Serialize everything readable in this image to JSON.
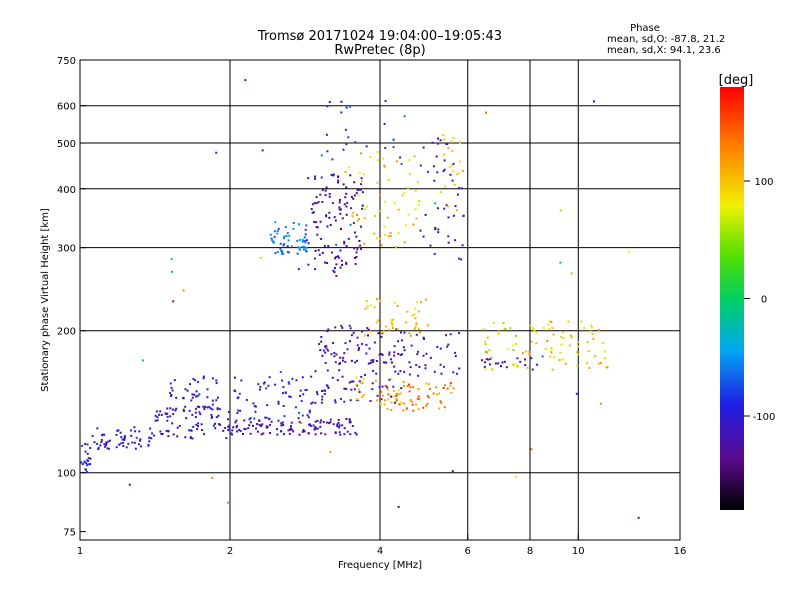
{
  "chart_data": {
    "type": "scatter",
    "title": "Tromsø 20171024  19:04:00–19:05:43",
    "subtitle": "RwPretec (8p)",
    "xlabel": "Frequency [MHz]",
    "ylabel": "Stationary phase Virtual Height [km]",
    "x_scale": "log",
    "y_scale": "log",
    "xlim": [
      1,
      16
    ],
    "ylim": [
      72,
      750
    ],
    "x_ticks": [
      1,
      2,
      4,
      6,
      8,
      10,
      16
    ],
    "x_tick_labels": [
      "1",
      "2",
      "4",
      "6",
      "8",
      "10",
      "16"
    ],
    "y_ticks": [
      75,
      100,
      200,
      300,
      400,
      500,
      600,
      750
    ],
    "y_tick_labels": [
      "75",
      "100",
      "200",
      "300",
      "400",
      "500",
      "600",
      "750"
    ],
    "grid_x": [
      2,
      4,
      6,
      8,
      10
    ],
    "grid_y": [
      100,
      200,
      300,
      400,
      500,
      600
    ],
    "grid": true,
    "phase_stats": {
      "heading": "Phase",
      "line_o": "mean, sd,O:  -87.8, 21.2",
      "line_x": "mean, sd,X:  94.1, 23.6"
    },
    "colorbar": {
      "unit": "[deg]",
      "range": [
        -180,
        180
      ],
      "tick_values": [
        100,
        0,
        -100
      ],
      "tick_labels": [
        "100",
        "0",
        "-100"
      ]
    },
    "clusters": [
      {
        "f": [
          1.0,
          1.05
        ],
        "h": [
          100,
          115
        ],
        "n": 25,
        "ph": [
          -125,
          -70
        ]
      },
      {
        "f": [
          1.05,
          1.4
        ],
        "h": [
          112,
          125
        ],
        "n": 60,
        "ph": [
          -125,
          -80
        ]
      },
      {
        "f": [
          1.4,
          2.0
        ],
        "h": [
          118,
          138
        ],
        "n": 80,
        "ph": [
          -130,
          -85
        ]
      },
      {
        "f": [
          1.5,
          1.9
        ],
        "h": [
          135,
          160
        ],
        "n": 45,
        "ph": [
          -125,
          -85
        ]
      },
      {
        "f": [
          2.0,
          3.6
        ],
        "h": [
          120,
          130
        ],
        "n": 110,
        "ph": [
          -140,
          -95
        ]
      },
      {
        "f": [
          2.0,
          2.9
        ],
        "h": [
          130,
          160
        ],
        "n": 60,
        "ph": [
          -125,
          -75
        ]
      },
      {
        "f": [
          2.9,
          4.5
        ],
        "h": [
          140,
          165
        ],
        "n": 60,
        "ph": [
          -145,
          -90
        ]
      },
      {
        "f": [
          4.0,
          5.7
        ],
        "h": [
          135,
          155
        ],
        "n": 60,
        "ph": [
          100,
          165
        ]
      },
      {
        "f": [
          3.5,
          4.5
        ],
        "h": [
          140,
          160
        ],
        "n": 25,
        "ph": [
          80,
          120
        ]
      },
      {
        "f": [
          3.0,
          4.5
        ],
        "h": [
          170,
          205
        ],
        "n": 80,
        "ph": [
          -150,
          -100
        ]
      },
      {
        "f": [
          3.7,
          5.0
        ],
        "h": [
          195,
          235
        ],
        "n": 45,
        "ph": [
          75,
          125
        ]
      },
      {
        "f": [
          4.2,
          5.8
        ],
        "h": [
          160,
          200
        ],
        "n": 40,
        "ph": [
          -145,
          -95
        ]
      },
      {
        "f": [
          2.4,
          2.85
        ],
        "h": [
          290,
          340
        ],
        "n": 60,
        "ph": [
          -80,
          -40
        ]
      },
      {
        "f": [
          2.85,
          3.7
        ],
        "h": [
          260,
          430
        ],
        "n": 120,
        "ph": [
          -150,
          -100
        ]
      },
      {
        "f": [
          3.4,
          4.8
        ],
        "h": [
          300,
          480
        ],
        "n": 60,
        "ph": [
          70,
          130
        ]
      },
      {
        "f": [
          4.8,
          5.9
        ],
        "h": [
          280,
          520
        ],
        "n": 45,
        "ph": [
          -145,
          -95
        ]
      },
      {
        "f": [
          3.0,
          4.5
        ],
        "h": [
          450,
          620
        ],
        "n": 25,
        "ph": [
          -140,
          -60
        ]
      },
      {
        "f": [
          5.3,
          5.9
        ],
        "h": [
          360,
          520
        ],
        "n": 20,
        "ph": [
          80,
          120
        ]
      },
      {
        "f": [
          6.4,
          11.5
        ],
        "h": [
          165,
          210
        ],
        "n": 90,
        "ph": [
          50,
          130
        ]
      },
      {
        "f": [
          6.4,
          8.5
        ],
        "h": [
          165,
          175
        ],
        "n": 20,
        "ph": [
          -140,
          -90
        ]
      },
      {
        "f": [
          1.0,
          14.0
        ],
        "h": [
          80,
          700
        ],
        "n": 35,
        "ph": [
          -150,
          150
        ]
      }
    ]
  }
}
